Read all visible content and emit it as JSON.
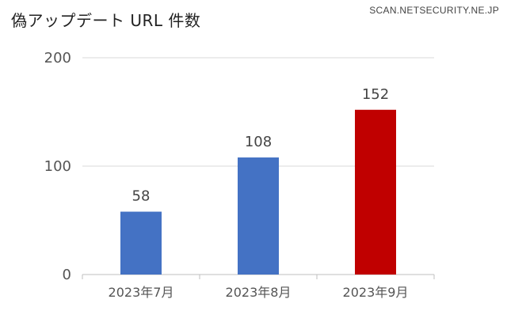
{
  "header": {
    "title": "偽アップデート URL 件数",
    "watermark": "SCAN.NETSECURITY.NE.JP"
  },
  "colors": {
    "bar_default": "#4472C4",
    "bar_highlight": "#C00000",
    "grid": "#d9d9d9"
  },
  "chart_data": {
    "type": "bar",
    "title": "偽アップデート URL 件数",
    "categories": [
      "2023年7月",
      "2023年8月",
      "2023年9月"
    ],
    "values": [
      58,
      108,
      152
    ],
    "bar_colors": [
      "#4472C4",
      "#4472C4",
      "#C00000"
    ],
    "yticks": [
      "0",
      "100",
      "200"
    ],
    "ytick_values": [
      0,
      100,
      200
    ],
    "ylim": [
      0,
      200
    ],
    "xlabel": "",
    "ylabel": "",
    "grid": true,
    "data_labels": [
      "58",
      "108",
      "152"
    ]
  }
}
